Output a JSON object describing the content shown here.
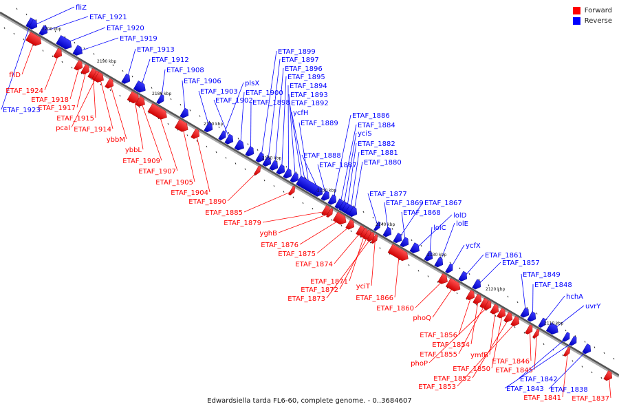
{
  "legend": {
    "forward_label": "Forward",
    "reverse_label": "Reverse",
    "forward_color": "#ff0000",
    "reverse_color": "#0000ff"
  },
  "caption": "Edwardsiella tarda FL6-60, complete genome. - 0..3684607",
  "ticks": [
    "2200 kbp",
    "2190 kbp",
    "2180 kbp",
    "2170 kbp",
    "2160 kbp",
    "2150 kbp",
    "2140 kbp",
    "2130 kbp",
    "2120 kbp",
    "2110 kbp"
  ],
  "forward_genes": [
    "fliD",
    "ETAF_1924",
    "ETAF_1918",
    "ETAF_1917",
    "ETAF_1915",
    "pcaI",
    "ETAF_1914",
    "ybbM",
    "ybbL",
    "ETAF_1909",
    "ETAF_1907",
    "ETAF_1905",
    "ETAF_1904",
    "ETAF_1890",
    "ETAF_1885",
    "ETAF_1879",
    "yghB",
    "ETAF_1876",
    "ETAF_1875",
    "ETAF_1874",
    "ETAF_1871",
    "ETAF_1872",
    "ETAF_1873",
    "yciT",
    "ETAF_1866",
    "ETAF_1860",
    "phoQ",
    "ETAF_1856",
    "ETAF_1854",
    "ETAF_1855",
    "phoP",
    "ymfB",
    "ETAF_1850",
    "ETAF_1852",
    "ETAF_1853",
    "ETAF_1846",
    "ETAF_1845",
    "ETAF_1841",
    "ETAF_1837"
  ],
  "reverse_genes": [
    "ETAF_1923",
    "fliZ",
    "ETAF_1921",
    "ETAF_1920",
    "ETAF_1919",
    "ETAF_1913",
    "ETAF_1912",
    "ETAF_1908",
    "ETAF_1906",
    "ETAF_1903",
    "plsX",
    "ETAF_1902",
    "ETAF_1900",
    "ETAF_1898",
    "ETAF_1899",
    "ETAF_1897",
    "ETAF_1896",
    "ETAF_1895",
    "ETAF_1894",
    "ETAF_1893",
    "ETAF_1892",
    "ycfH",
    "ETAF_1889",
    "ETAF_1888",
    "ETAF_1887",
    "ETAF_1886",
    "ETAF_1884",
    "yciS",
    "ETAF_1882",
    "ETAF_1881",
    "ETAF_1880",
    "ETAF_1877",
    "ETAF_1869",
    "ETAF_1867",
    "ETAF_1868",
    "lolD",
    "lolC",
    "lolE",
    "ycfX",
    "ETAF_1861",
    "ETAF_1857",
    "ETAF_1849",
    "ETAF_1848",
    "hchA",
    "uvrY",
    "ETAF_1842",
    "ETAF_1843",
    "ETAF_1838"
  ]
}
